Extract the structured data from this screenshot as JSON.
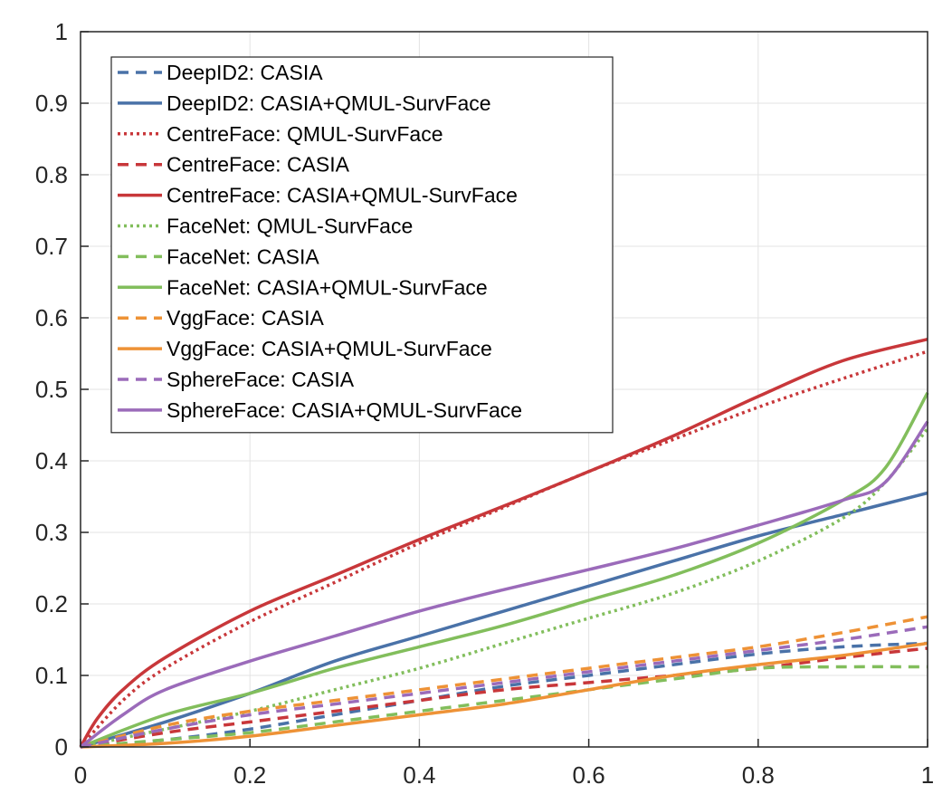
{
  "chart_data": {
    "type": "line",
    "title": "",
    "xlabel": "",
    "ylabel": "",
    "xlim": [
      0,
      1
    ],
    "ylim": [
      0,
      1
    ],
    "x_ticks": [
      "0",
      "0.2",
      "0.4",
      "0.6",
      "0.8",
      "1"
    ],
    "y_ticks": [
      "0",
      "0.1",
      "0.2",
      "0.3",
      "0.4",
      "0.5",
      "0.6",
      "0.7",
      "0.8",
      "0.9",
      "1"
    ],
    "grid": true,
    "legend_position": "top-left",
    "series": [
      {
        "name": "DeepID2: CASIA",
        "color": "#4A72A8",
        "style": "dashed",
        "points": [
          [
            0,
            0
          ],
          [
            0.1,
            0.01
          ],
          [
            0.2,
            0.025
          ],
          [
            0.3,
            0.045
          ],
          [
            0.4,
            0.065
          ],
          [
            0.5,
            0.085
          ],
          [
            0.6,
            0.1
          ],
          [
            0.7,
            0.115
          ],
          [
            0.8,
            0.13
          ],
          [
            0.9,
            0.14
          ],
          [
            1,
            0.145
          ]
        ]
      },
      {
        "name": "DeepID2: CASIA+QMUL-SurvFace",
        "color": "#4A72A8",
        "style": "solid",
        "points": [
          [
            0,
            0
          ],
          [
            0.1,
            0.035
          ],
          [
            0.2,
            0.075
          ],
          [
            0.3,
            0.12
          ],
          [
            0.4,
            0.155
          ],
          [
            0.5,
            0.19
          ],
          [
            0.6,
            0.225
          ],
          [
            0.7,
            0.26
          ],
          [
            0.8,
            0.295
          ],
          [
            0.9,
            0.325
          ],
          [
            1,
            0.355
          ]
        ]
      },
      {
        "name": "CentreFace: QMUL-SurvFace",
        "color": "#C8373A",
        "style": "dotted",
        "points": [
          [
            0,
            0
          ],
          [
            0.05,
            0.065
          ],
          [
            0.1,
            0.11
          ],
          [
            0.2,
            0.175
          ],
          [
            0.3,
            0.23
          ],
          [
            0.4,
            0.285
          ],
          [
            0.5,
            0.335
          ],
          [
            0.6,
            0.385
          ],
          [
            0.7,
            0.43
          ],
          [
            0.8,
            0.475
          ],
          [
            0.9,
            0.515
          ],
          [
            1,
            0.553
          ]
        ]
      },
      {
        "name": "CentreFace: CASIA",
        "color": "#C8373A",
        "style": "dashed",
        "points": [
          [
            0,
            0
          ],
          [
            0.1,
            0.02
          ],
          [
            0.2,
            0.035
          ],
          [
            0.3,
            0.05
          ],
          [
            0.4,
            0.065
          ],
          [
            0.5,
            0.08
          ],
          [
            0.6,
            0.09
          ],
          [
            0.7,
            0.1
          ],
          [
            0.8,
            0.11
          ],
          [
            0.9,
            0.125
          ],
          [
            1,
            0.138
          ]
        ]
      },
      {
        "name": "CentreFace: CASIA+QMUL-SurvFace",
        "color": "#C8373A",
        "style": "solid",
        "points": [
          [
            0,
            0
          ],
          [
            0.02,
            0.04
          ],
          [
            0.05,
            0.08
          ],
          [
            0.1,
            0.125
          ],
          [
            0.2,
            0.19
          ],
          [
            0.3,
            0.24
          ],
          [
            0.4,
            0.29
          ],
          [
            0.5,
            0.337
          ],
          [
            0.6,
            0.385
          ],
          [
            0.7,
            0.435
          ],
          [
            0.8,
            0.49
          ],
          [
            0.9,
            0.54
          ],
          [
            1,
            0.57
          ]
        ]
      },
      {
        "name": "FaceNet: QMUL-SurvFace",
        "color": "#82BE5C",
        "style": "dotted",
        "points": [
          [
            0,
            0
          ],
          [
            0.1,
            0.025
          ],
          [
            0.2,
            0.05
          ],
          [
            0.3,
            0.08
          ],
          [
            0.4,
            0.11
          ],
          [
            0.5,
            0.145
          ],
          [
            0.6,
            0.18
          ],
          [
            0.7,
            0.215
          ],
          [
            0.8,
            0.26
          ],
          [
            0.9,
            0.32
          ],
          [
            0.95,
            0.37
          ],
          [
            1,
            0.445
          ]
        ]
      },
      {
        "name": "FaceNet: CASIA",
        "color": "#82BE5C",
        "style": "dashed",
        "points": [
          [
            0,
            0
          ],
          [
            0.1,
            0.01
          ],
          [
            0.2,
            0.02
          ],
          [
            0.3,
            0.035
          ],
          [
            0.4,
            0.05
          ],
          [
            0.5,
            0.065
          ],
          [
            0.6,
            0.08
          ],
          [
            0.7,
            0.095
          ],
          [
            0.8,
            0.11
          ],
          [
            0.9,
            0.112
          ],
          [
            1,
            0.112
          ]
        ]
      },
      {
        "name": "FaceNet: CASIA+QMUL-SurvFace",
        "color": "#82BE5C",
        "style": "solid",
        "points": [
          [
            0,
            0
          ],
          [
            0.1,
            0.045
          ],
          [
            0.2,
            0.075
          ],
          [
            0.3,
            0.11
          ],
          [
            0.4,
            0.14
          ],
          [
            0.5,
            0.17
          ],
          [
            0.6,
            0.205
          ],
          [
            0.7,
            0.24
          ],
          [
            0.8,
            0.285
          ],
          [
            0.9,
            0.345
          ],
          [
            0.95,
            0.39
          ],
          [
            1,
            0.495
          ]
        ]
      },
      {
        "name": "VggFace: CASIA",
        "color": "#EE9236",
        "style": "dashed",
        "points": [
          [
            0,
            0
          ],
          [
            0.1,
            0.03
          ],
          [
            0.2,
            0.05
          ],
          [
            0.3,
            0.065
          ],
          [
            0.4,
            0.08
          ],
          [
            0.5,
            0.095
          ],
          [
            0.6,
            0.11
          ],
          [
            0.7,
            0.125
          ],
          [
            0.8,
            0.14
          ],
          [
            0.9,
            0.16
          ],
          [
            1,
            0.182
          ]
        ]
      },
      {
        "name": "VggFace: CASIA+QMUL-SurvFace",
        "color": "#EE9236",
        "style": "solid",
        "points": [
          [
            0,
            0
          ],
          [
            0.1,
            0.005
          ],
          [
            0.2,
            0.015
          ],
          [
            0.3,
            0.03
          ],
          [
            0.4,
            0.045
          ],
          [
            0.5,
            0.06
          ],
          [
            0.6,
            0.08
          ],
          [
            0.7,
            0.1
          ],
          [
            0.8,
            0.115
          ],
          [
            0.9,
            0.128
          ],
          [
            1,
            0.145
          ]
        ]
      },
      {
        "name": "SphereFace: CASIA",
        "color": "#9B6BBA",
        "style": "dashed",
        "points": [
          [
            0,
            0
          ],
          [
            0.1,
            0.025
          ],
          [
            0.2,
            0.045
          ],
          [
            0.3,
            0.06
          ],
          [
            0.4,
            0.075
          ],
          [
            0.5,
            0.09
          ],
          [
            0.6,
            0.105
          ],
          [
            0.7,
            0.12
          ],
          [
            0.8,
            0.135
          ],
          [
            0.9,
            0.15
          ],
          [
            1,
            0.168
          ]
        ]
      },
      {
        "name": "SphereFace: CASIA+QMUL-SurvFace",
        "color": "#9B6BBA",
        "style": "solid",
        "points": [
          [
            0,
            0
          ],
          [
            0.05,
            0.045
          ],
          [
            0.1,
            0.08
          ],
          [
            0.2,
            0.12
          ],
          [
            0.3,
            0.155
          ],
          [
            0.4,
            0.19
          ],
          [
            0.5,
            0.22
          ],
          [
            0.6,
            0.248
          ],
          [
            0.7,
            0.277
          ],
          [
            0.8,
            0.31
          ],
          [
            0.9,
            0.345
          ],
          [
            0.95,
            0.37
          ],
          [
            1,
            0.455
          ]
        ]
      }
    ]
  }
}
